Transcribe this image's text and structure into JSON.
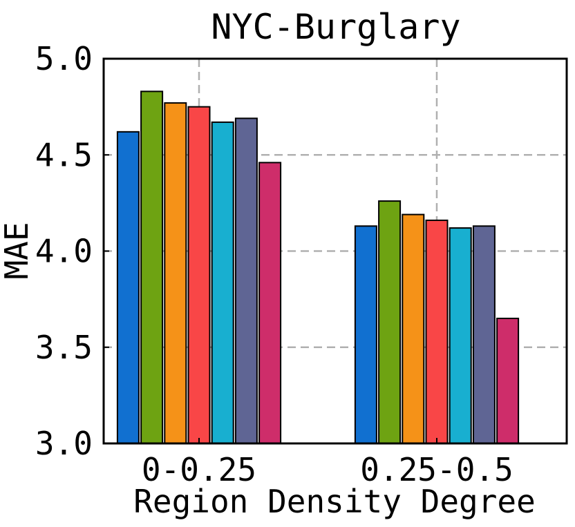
{
  "chart_data": {
    "type": "bar",
    "title": "NYC-Burglary",
    "xlabel": "Region Density Degree",
    "ylabel": "MAE",
    "categories": [
      "0-0.25",
      "0.25-0.5"
    ],
    "ylim": [
      3.0,
      5.0
    ],
    "yticks": [
      "3.0",
      "3.5",
      "4.0",
      "4.5",
      "5.0"
    ],
    "ytick_values": [
      3.0,
      3.5,
      4.0,
      4.5,
      5.0
    ],
    "grid": true,
    "series": [
      {
        "color": "#1170d0",
        "values": [
          4.62,
          4.13
        ]
      },
      {
        "color": "#6ea312",
        "values": [
          4.83,
          4.26
        ]
      },
      {
        "color": "#f59218",
        "values": [
          4.77,
          4.19
        ]
      },
      {
        "color": "#f94647",
        "values": [
          4.75,
          4.16
        ]
      },
      {
        "color": "#18afd0",
        "values": [
          4.67,
          4.12
        ]
      },
      {
        "color": "#5f6594",
        "values": [
          4.69,
          4.13
        ]
      },
      {
        "color": "#ce2d6a",
        "values": [
          4.46,
          3.65
        ]
      }
    ]
  }
}
